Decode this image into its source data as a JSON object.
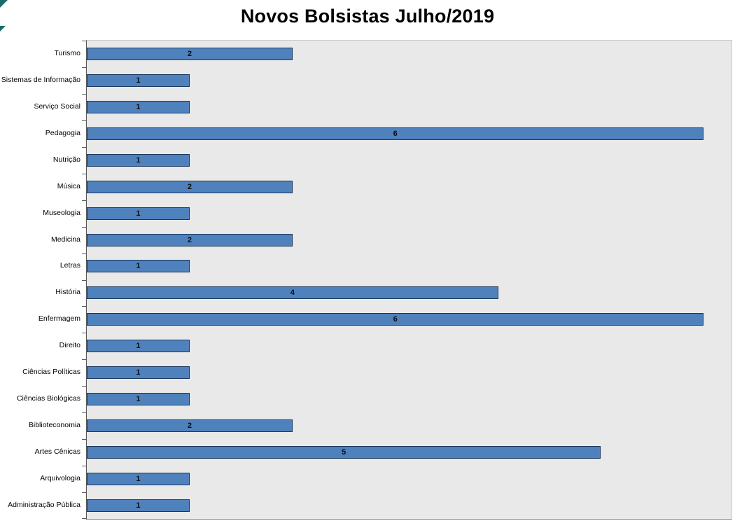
{
  "chart_data": {
    "type": "bar",
    "orientation": "horizontal",
    "title": "Novos Bolsistas Julho/2019",
    "xlabel": "",
    "ylabel": "",
    "categories": [
      "Turismo",
      "Sistemas de Informação",
      "Serviço Social",
      "Pedagogia",
      "Nutrição",
      "Música",
      "Museologia",
      "Medicina",
      "Letras",
      "História",
      "Enfermagem",
      "Direito",
      "Ciências Políticas",
      "Ciências Biológicas",
      "Biblioteconomia",
      "Artes Cênicas",
      "Arquivologia",
      "Administração Pública"
    ],
    "values": [
      2,
      1,
      1,
      6,
      1,
      2,
      1,
      2,
      1,
      4,
      6,
      1,
      1,
      1,
      2,
      5,
      1,
      1
    ],
    "xlim": [
      0,
      6.27
    ],
    "grid": false,
    "legend": "none",
    "data_labels": "centered",
    "bar_color": "#4f81bd",
    "bar_border_color": "#17375e",
    "plot_background": "#e9e9e9",
    "label_color": "#0d0d0d"
  }
}
